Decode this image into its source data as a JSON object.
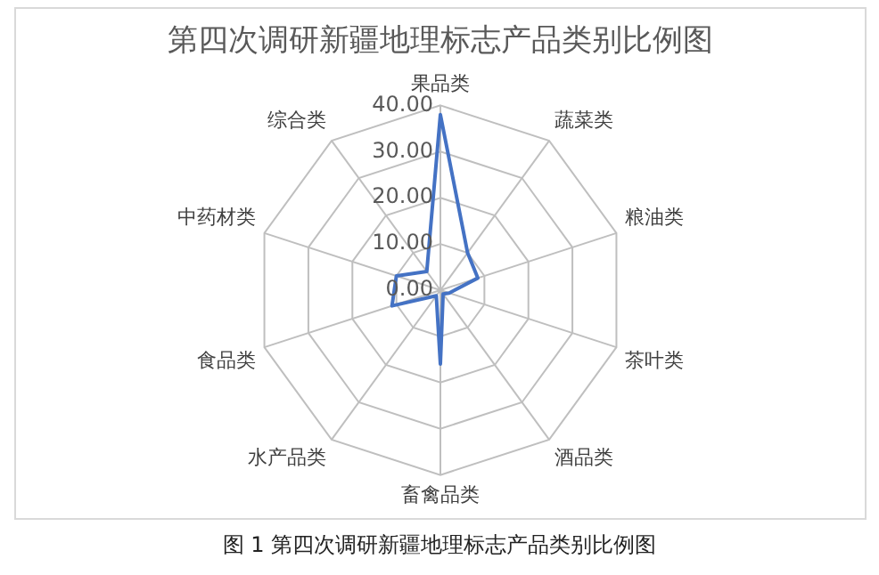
{
  "chart_data": {
    "type": "radar",
    "title": "第四次调研新疆地理标志产品类别比例图",
    "categories": [
      "果品类",
      "蔬菜类",
      "粮油类",
      "茶叶类",
      "酒品类",
      "畜禽品类",
      "水产品类",
      "食品类",
      "中药材类",
      "综合类"
    ],
    "series": [
      {
        "color": "#4472c4",
        "values": [
          38,
          10,
          8.5,
          2,
          1,
          16,
          1.5,
          11,
          10,
          5
        ]
      }
    ],
    "ylim": [
      0,
      40
    ],
    "yticks": [
      {
        "value": 0,
        "label": "0.00"
      },
      {
        "value": 10,
        "label": "10.00"
      },
      {
        "value": 20,
        "label": "20.00"
      },
      {
        "value": 30,
        "label": "30.00"
      },
      {
        "value": 40,
        "label": "40.00"
      }
    ],
    "grid": true,
    "marker": "none",
    "legend": false,
    "annotations": [
      "图 1  第四次调研新疆地理标志产品类别比例图"
    ]
  }
}
